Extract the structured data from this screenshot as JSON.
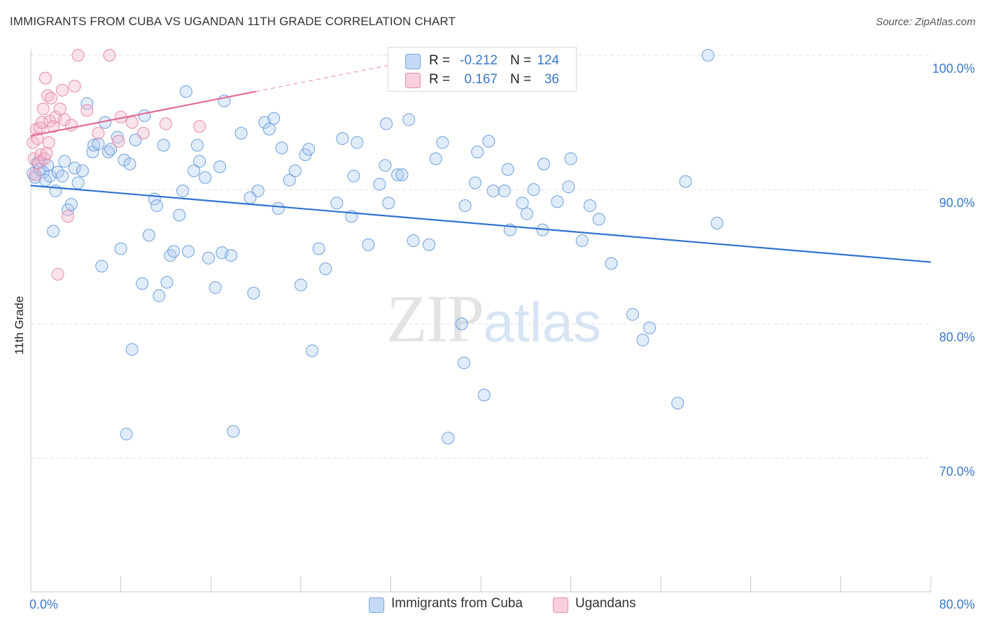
{
  "header": {
    "title": "IMMIGRANTS FROM CUBA VS UGANDAN 11TH GRADE CORRELATION CHART",
    "source": "Source: ZipAtlas.com"
  },
  "watermark": {
    "zip": "ZIP",
    "atlas": "atlas"
  },
  "stats": {
    "rows": [
      {
        "r_label": "R =",
        "r_value": "-0.212",
        "n_label": "N =",
        "n_value": "124",
        "color": "#a8c8f0"
      },
      {
        "r_label": "R =",
        "r_value": "0.167",
        "n_label": "N =",
        "n_value": "36",
        "color": "#f5b8cc"
      }
    ]
  },
  "legend": {
    "items": [
      {
        "label": "Immigrants from Cuba",
        "color": "#a8c8f0"
      },
      {
        "label": "Ugandans",
        "color": "#f5b8cc"
      }
    ]
  },
  "chart_data": {
    "type": "scatter",
    "title": "IMMIGRANTS FROM CUBA VS UGANDAN 11TH GRADE CORRELATION CHART",
    "xlabel": "",
    "ylabel": "11th Grade",
    "xlim": [
      0,
      80
    ],
    "ylim": [
      61,
      102.5
    ],
    "x_tick_labels": [
      "0.0%",
      "80.0%"
    ],
    "y_ticks": [
      70,
      80,
      90,
      100
    ],
    "y_tick_labels": [
      "70.0%",
      "80.0%",
      "90.0%",
      "100.0%"
    ],
    "grid": true,
    "legend_position": "bottom-center",
    "colors": {
      "cuba_fill": "#a8c8f0",
      "cuba_line": "#2f72cf",
      "uganda_fill": "#f5b8cc",
      "uganda_line": "#e06a94"
    },
    "series": [
      {
        "name": "Immigrants from Cuba",
        "trend": {
          "x": [
            0,
            80
          ],
          "y": [
            90.3,
            84.6
          ]
        },
        "x": [
          0.2,
          0.4,
          0.6,
          0.8,
          0.9,
          1.1,
          1.3,
          1.5,
          1.7,
          2.0,
          2.2,
          2.4,
          2.8,
          3.0,
          3.3,
          3.6,
          3.9,
          4.2,
          4.6,
          5.0,
          5.5,
          5.6,
          6.0,
          6.3,
          6.6,
          6.9,
          7.1,
          7.7,
          8.0,
          8.3,
          8.5,
          8.8,
          9.0,
          9.3,
          9.9,
          10.1,
          10.5,
          11.0,
          11.2,
          11.4,
          11.8,
          12.1,
          12.4,
          12.7,
          13.2,
          13.5,
          13.8,
          14.0,
          14.5,
          14.8,
          15.0,
          15.5,
          15.8,
          16.4,
          16.8,
          17.0,
          17.2,
          17.8,
          18.0,
          18.7,
          19.5,
          19.8,
          20.2,
          20.8,
          21.2,
          21.6,
          22.0,
          22.3,
          23.0,
          23.5,
          24.0,
          24.4,
          24.7,
          25.0,
          25.6,
          26.2,
          27.2,
          27.7,
          28.5,
          28.7,
          29.0,
          30.0,
          31.0,
          31.5,
          31.6,
          31.8,
          32.6,
          33.0,
          33.6,
          34.0,
          35.4,
          36.0,
          36.6,
          37.1,
          38.3,
          38.5,
          38.6,
          39.5,
          39.7,
          40.3,
          40.7,
          41.1,
          42.1,
          42.4,
          42.6,
          43.7,
          44.1,
          44.7,
          45.5,
          45.6,
          46.8,
          47.8,
          48.0,
          49.0,
          49.7,
          50.5,
          51.6,
          53.5,
          54.4,
          55.0,
          57.5,
          58.2,
          60.2,
          61.0
        ],
        "y": [
          91.2,
          90.9,
          92.0,
          91.5,
          92.1,
          91.3,
          90.7,
          91.8,
          91.0,
          86.9,
          89.9,
          91.3,
          91.0,
          92.1,
          88.5,
          88.9,
          91.6,
          90.5,
          91.4,
          96.4,
          92.8,
          93.3,
          93.4,
          84.3,
          95.0,
          92.8,
          93.0,
          93.9,
          85.6,
          92.2,
          71.8,
          91.9,
          78.1,
          93.7,
          83.0,
          95.5,
          86.6,
          89.3,
          88.8,
          82.1,
          93.3,
          83.1,
          85.1,
          85.4,
          88.1,
          89.9,
          97.3,
          85.4,
          91.4,
          93.3,
          92.1,
          90.9,
          84.9,
          82.7,
          91.7,
          85.3,
          96.6,
          85.1,
          72.0,
          94.2,
          89.4,
          82.3,
          89.9,
          95.0,
          94.5,
          95.3,
          88.6,
          93.1,
          90.7,
          91.4,
          82.9,
          92.6,
          93.0,
          78.0,
          85.6,
          84.1,
          89.0,
          93.8,
          88.0,
          91.0,
          93.5,
          85.9,
          90.4,
          91.8,
          94.9,
          89.0,
          91.1,
          91.1,
          95.2,
          86.2,
          85.9,
          92.3,
          93.5,
          71.5,
          80.0,
          77.1,
          88.8,
          90.5,
          92.8,
          74.7,
          93.6,
          89.9,
          89.9,
          91.5,
          87.0,
          89.0,
          88.2,
          90.0,
          87.0,
          91.9,
          89.1,
          90.2,
          92.3,
          86.2,
          88.8,
          87.8,
          84.5,
          80.7,
          78.8,
          79.7,
          74.1,
          90.6,
          100.0,
          87.5
        ]
      },
      {
        "name": "Ugandans",
        "trend": {
          "x": [
            0,
            20
          ],
          "y": [
            94.0,
            97.3
          ]
        },
        "x": [
          0.2,
          0.3,
          0.4,
          0.5,
          0.6,
          0.7,
          0.8,
          0.9,
          1.0,
          1.1,
          1.2,
          1.3,
          1.4,
          1.5,
          1.6,
          1.7,
          1.8,
          2.0,
          2.2,
          2.4,
          2.6,
          2.8,
          3.0,
          3.3,
          3.6,
          3.9,
          4.2,
          5.0,
          6.0,
          7.0,
          7.8,
          8.0,
          9.0,
          10.0,
          12.0,
          15.0
        ],
        "y": [
          93.5,
          92.3,
          91.1,
          94.5,
          93.8,
          92.0,
          94.6,
          92.6,
          95.0,
          96.0,
          92.3,
          98.3,
          92.7,
          97.0,
          93.5,
          95.1,
          96.8,
          94.7,
          95.4,
          83.7,
          96.0,
          97.4,
          95.2,
          88.0,
          94.8,
          97.7,
          100.0,
          95.9,
          94.2,
          100.0,
          93.6,
          95.4,
          95.0,
          94.2,
          94.9,
          94.7
        ]
      }
    ]
  }
}
